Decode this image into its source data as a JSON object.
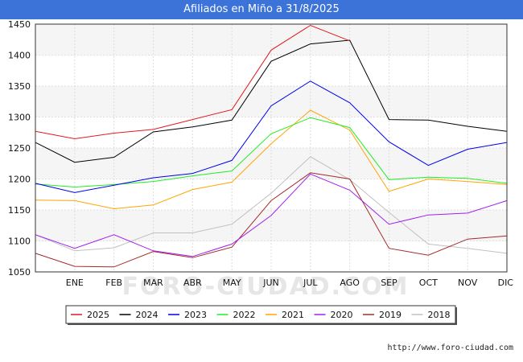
{
  "title": "Afiliados en Miño a 31/8/2025",
  "watermark": "FORO-CIUDAD.COM",
  "footer": "http://www.foro-ciudad.com",
  "chart_data": {
    "type": "line",
    "categories": [
      "",
      "ENE",
      "FEB",
      "MAR",
      "ABR",
      "MAY",
      "JUN",
      "JUL",
      "AGO",
      "SEP",
      "OCT",
      "NOV",
      "DIC"
    ],
    "ylim": [
      1050,
      1450
    ],
    "yticks": [
      1050,
      1100,
      1150,
      1200,
      1250,
      1300,
      1350,
      1400,
      1450
    ],
    "grid": true,
    "legend_position": "bottom",
    "series": [
      {
        "name": "2025",
        "color": "#e31a1c",
        "values": [
          1277,
          1265,
          1274,
          1280,
          1296,
          1312,
          1408,
          1448,
          1423,
          null,
          null,
          null,
          null
        ]
      },
      {
        "name": "2024",
        "color": "#000000",
        "values": [
          1259,
          1227,
          1235,
          1276,
          1284,
          1295,
          1390,
          1418,
          1424,
          1296,
          1295,
          1285,
          1277
        ]
      },
      {
        "name": "2023",
        "color": "#0000ee",
        "values": [
          1193,
          1178,
          1190,
          1202,
          1209,
          1230,
          1318,
          1358,
          1323,
          1260,
          1222,
          1248,
          1259
        ]
      },
      {
        "name": "2022",
        "color": "#22ee22",
        "values": [
          1192,
          1187,
          1191,
          1196,
          1205,
          1213,
          1273,
          1299,
          1283,
          1199,
          1203,
          1201,
          1193
        ]
      },
      {
        "name": "2021",
        "color": "#ffa500",
        "values": [
          1166,
          1165,
          1152,
          1158,
          1183,
          1195,
          1257,
          1311,
          1279,
          1180,
          1200,
          1196,
          1191
        ]
      },
      {
        "name": "2020",
        "color": "#a020f0",
        "values": [
          1110,
          1088,
          1110,
          1084,
          1075,
          1095,
          1141,
          1208,
          1182,
          1127,
          1142,
          1145,
          1165
        ]
      },
      {
        "name": "2019",
        "color": "#a52a2a",
        "values": [
          1080,
          1059,
          1058,
          1083,
          1073,
          1090,
          1165,
          1210,
          1200,
          1088,
          1077,
          1103,
          1108
        ]
      },
      {
        "name": "2018",
        "color": "#c0c0c0",
        "values": [
          1110,
          1084,
          1089,
          1113,
          1113,
          1127,
          1177,
          1236,
          1199,
          1146,
          1095,
          1088,
          1080
        ]
      }
    ]
  }
}
